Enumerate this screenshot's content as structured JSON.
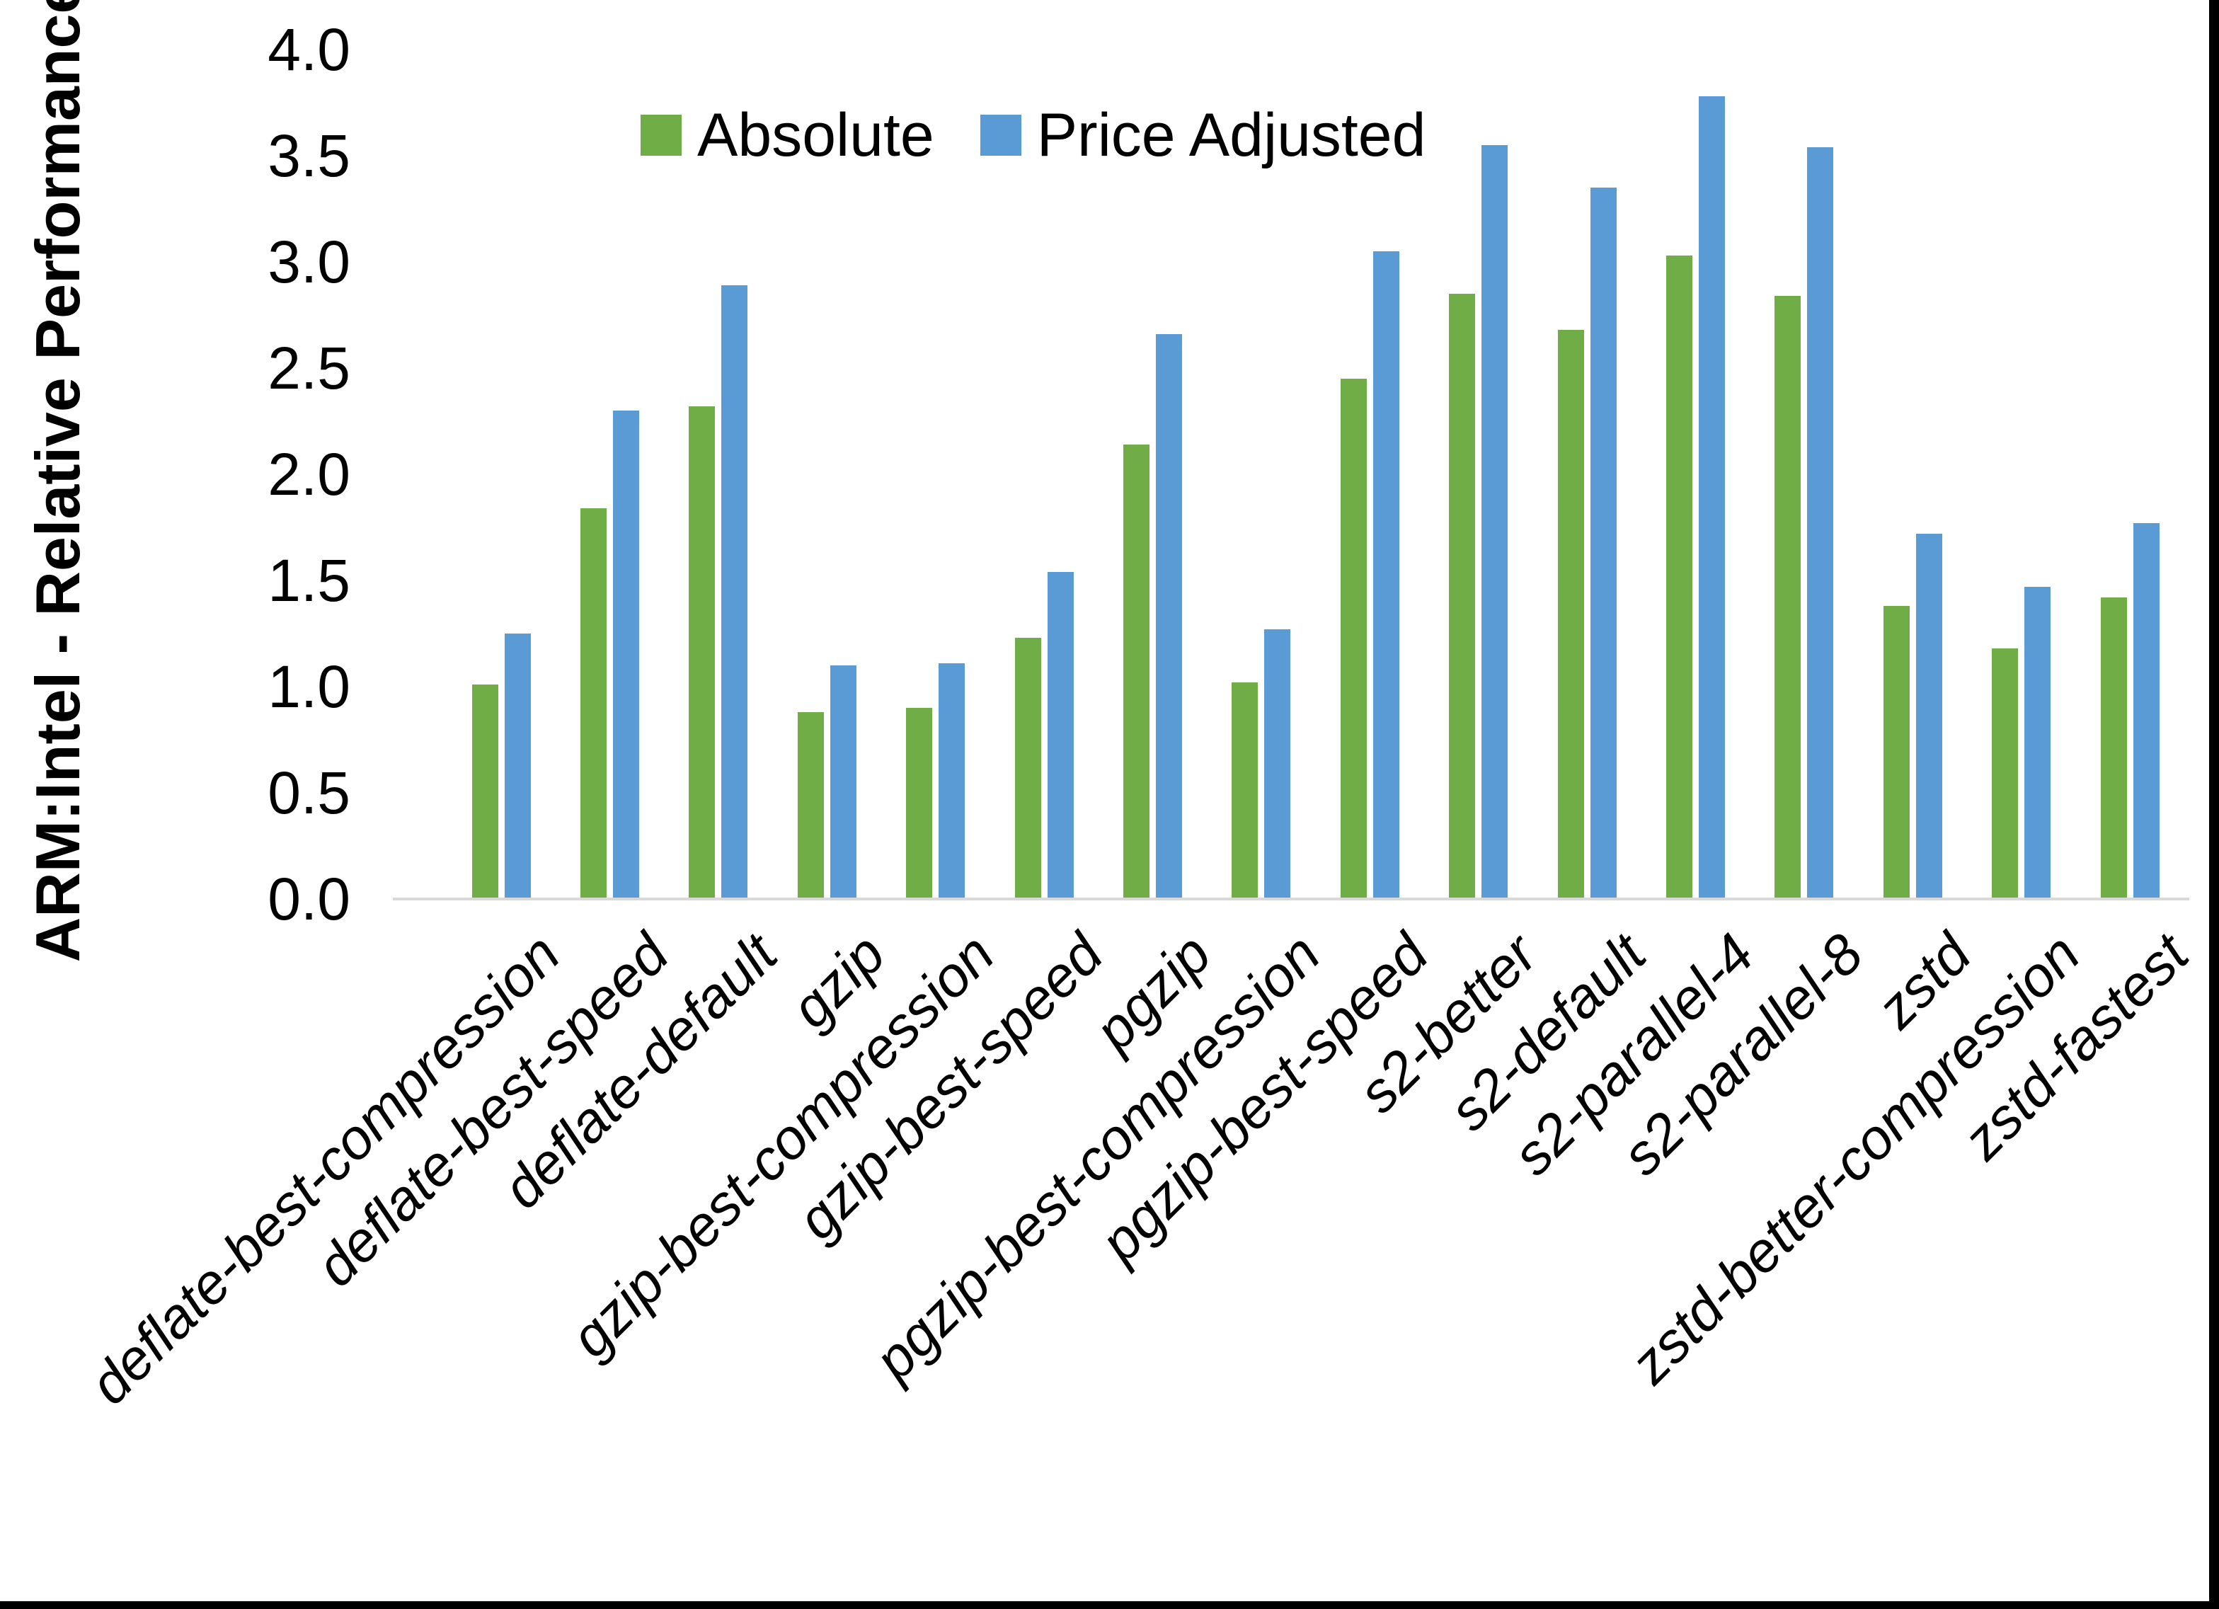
{
  "chart_data": {
    "type": "bar",
    "title": "",
    "xlabel": "",
    "ylabel": "ARM:Intel - Relative Performance",
    "ylim": [
      0.0,
      4.0
    ],
    "ytick_step": 0.5,
    "yticks": [
      "0.0",
      "0.5",
      "1.0",
      "1.5",
      "2.0",
      "2.5",
      "3.0",
      "3.5",
      "4.0"
    ],
    "grid": false,
    "legend_position": "top-center",
    "categories": [
      "deflate-best-compression",
      "deflate-best-speed",
      "deflate-default",
      "gzip",
      "gzip-best-compression",
      "gzip-best-speed",
      "pgzip",
      "pgzip-best-compression",
      "pgzip-best-speed",
      "s2-better",
      "s2-default",
      "s2-parallel-4",
      "s2-parallel-8",
      "zstd",
      "zstd-better-compression",
      "zstd-fastest"
    ],
    "series": [
      {
        "name": "Absolute",
        "color": "#70AD47",
        "values": [
          1.01,
          1.84,
          2.32,
          0.88,
          0.9,
          1.23,
          2.14,
          1.02,
          2.45,
          2.85,
          2.68,
          3.03,
          2.84,
          1.38,
          1.18,
          1.42
        ]
      },
      {
        "name": "Price Adjusted",
        "color": "#5B9BD5",
        "values": [
          1.25,
          2.3,
          2.89,
          1.1,
          1.11,
          1.54,
          2.66,
          1.27,
          3.05,
          3.55,
          3.35,
          3.78,
          3.54,
          1.72,
          1.47,
          1.77
        ]
      }
    ]
  },
  "colors": {
    "absolute": "#70AD47",
    "price_adjusted": "#5B9BD5",
    "axis_line": "#D9D9D9",
    "text": "#000000",
    "border": "#000000"
  }
}
